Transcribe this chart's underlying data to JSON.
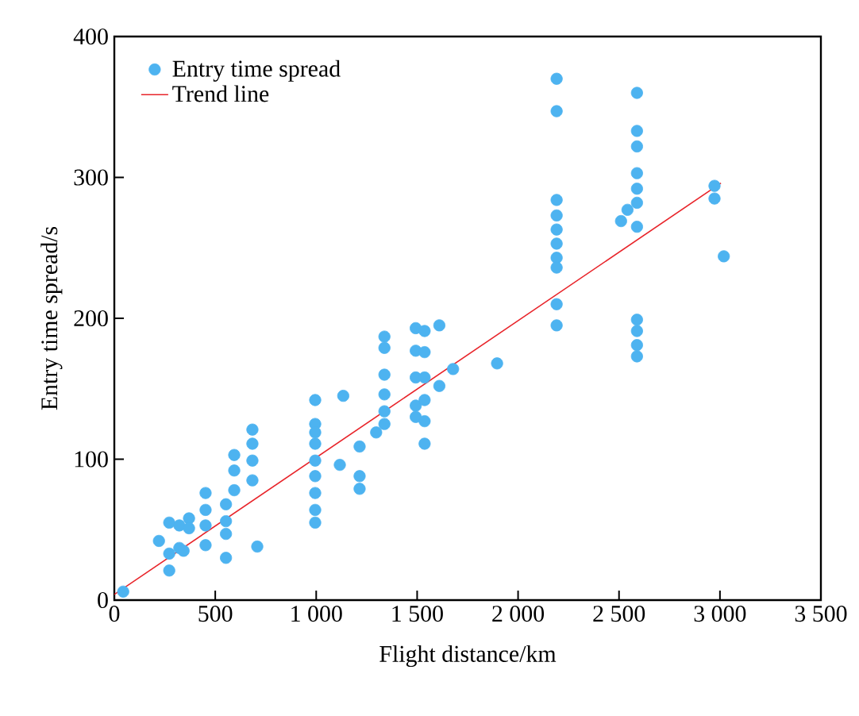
{
  "chart_data": {
    "type": "scatter",
    "xlabel": "Flight distance/km",
    "ylabel": "Entry time spread/s",
    "xlim": [
      0,
      3500
    ],
    "ylim": [
      0,
      400
    ],
    "xticks": [
      0,
      500,
      {
        "value": 1000,
        "label": "1 000"
      },
      {
        "value": 1500,
        "label": "1 500"
      },
      {
        "value": 2000,
        "label": "2 000"
      },
      {
        "value": 2500,
        "label": "2 500"
      },
      {
        "value": 3000,
        "label": "3 000"
      },
      {
        "value": 3500,
        "label": "3 500"
      }
    ],
    "yticks": [
      0,
      100,
      200,
      300,
      400
    ],
    "legend": "top left",
    "grid": false,
    "series": [
      {
        "name": "Entry time spread",
        "marker": "circle",
        "color": "#4db3f0",
        "x": [
          44,
          221,
          272,
          272,
          272,
          322,
          322,
          370,
          370,
          343,
          452,
          452,
          452,
          452,
          553,
          553,
          553,
          553,
          594,
          594,
          594,
          684,
          684,
          684,
          684,
          708,
          995,
          995,
          995,
          995,
          995,
          995,
          995,
          995,
          995,
          1117,
          1134,
          1215,
          1215,
          1215,
          1297,
          1338,
          1338,
          1338,
          1338,
          1338,
          1338,
          1493,
          1493,
          1493,
          1493,
          1493,
          1537,
          1537,
          1537,
          1537,
          1537,
          1537,
          1610,
          1610,
          1678,
          1896,
          2191,
          2191,
          2191,
          2191,
          2191,
          2191,
          2191,
          2191,
          2191,
          2191,
          2510,
          2542,
          2589,
          2589,
          2589,
          2589,
          2589,
          2589,
          2589,
          2589,
          2589,
          2589,
          2589,
          2973,
          2973,
          3019
        ],
        "values": [
          6,
          42,
          55,
          21,
          33,
          37,
          53,
          58,
          51,
          35,
          76,
          64,
          53,
          39,
          68,
          56,
          47,
          30,
          103,
          92,
          78,
          121,
          111,
          99,
          85,
          38,
          142,
          125,
          119,
          111,
          99,
          88,
          76,
          64,
          55,
          96,
          145,
          109,
          88,
          79,
          119,
          187,
          179,
          160,
          146,
          134,
          125,
          193,
          177,
          158,
          138,
          130,
          191,
          176,
          158,
          142,
          127,
          111,
          195,
          152,
          164,
          168,
          370,
          347,
          284,
          273,
          263,
          253,
          243,
          236,
          210,
          195,
          269,
          277,
          360,
          333,
          322,
          303,
          292,
          282,
          265,
          199,
          191,
          181,
          173,
          294,
          285,
          244
        ]
      },
      {
        "name": "Trend line",
        "type": "line",
        "marker": "none",
        "line_style": "solid",
        "color": "#e8242a",
        "x": [
          0,
          3005
        ],
        "values": [
          4,
          296
        ]
      }
    ]
  }
}
